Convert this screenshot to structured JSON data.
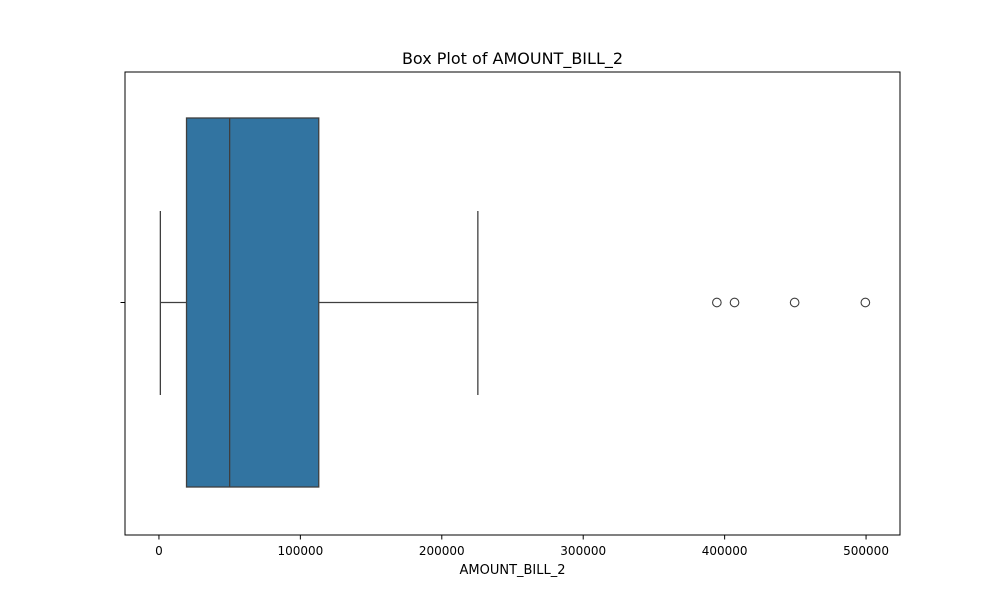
{
  "chart_data": {
    "type": "box",
    "title": "Box Plot of AMOUNT_BILL_2",
    "xlabel": "AMOUNT_BILL_2",
    "ylabel": "",
    "xlim": [
      -24000,
      524000
    ],
    "xticks": [
      0,
      100000,
      200000,
      300000,
      400000,
      500000
    ],
    "xtick_labels": [
      "0",
      "100000",
      "200000",
      "300000",
      "400000",
      "500000"
    ],
    "box": {
      "whisker_low": 1000,
      "q1": 19500,
      "median": 50000,
      "q3": 113000,
      "whisker_high": 225500
    },
    "outliers": [
      394500,
      407000,
      449500,
      499500
    ],
    "box_color": "#3274a1",
    "line_color": "#3f3f3f",
    "grid": false,
    "legend": "none"
  }
}
